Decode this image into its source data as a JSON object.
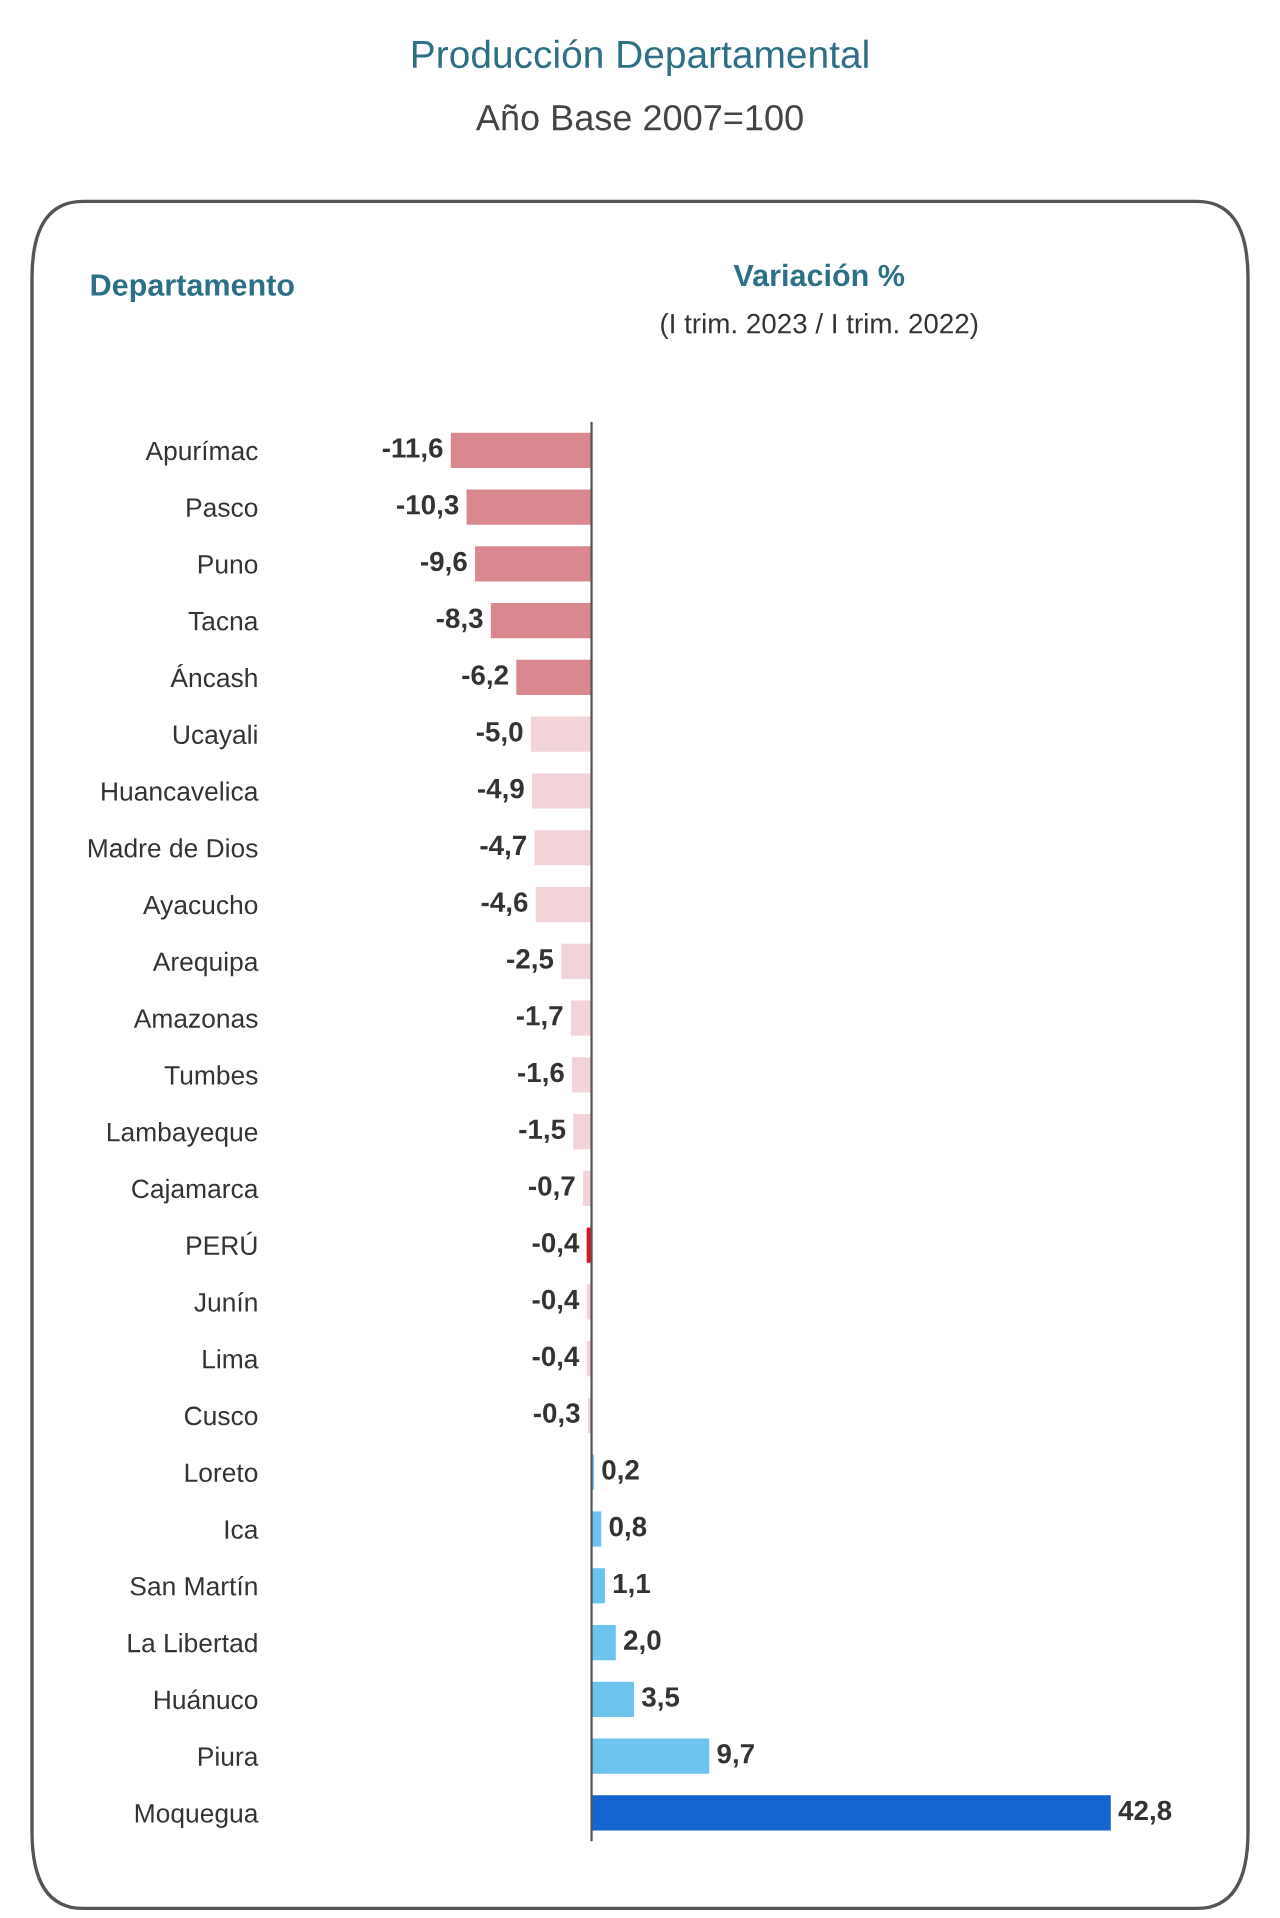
{
  "chart_data": {
    "type": "bar",
    "orientation": "horizontal",
    "title": "Producción Departamental",
    "subtitle": "Año Base 2007=100",
    "ylabel": "Departamento",
    "xlabel": "Variación %",
    "annotations": [
      "(I trim. 2023 / I trim. 2022)"
    ],
    "categories": [
      "Apurímac",
      "Pasco",
      "Puno",
      "Tacna",
      "Áncash",
      "Ucayali",
      "Huancavelica",
      "Madre de Dios",
      "Ayacucho",
      "Arequipa",
      "Amazonas",
      "Tumbes",
      "Lambayeque",
      "Cajamarca",
      "PERÚ",
      "Junín",
      "Lima",
      "Cusco",
      "Loreto",
      "Ica",
      "San Martín",
      "La Libertad",
      "Huánuco",
      "Piura",
      "Moquegua"
    ],
    "values": [
      -11.6,
      -10.3,
      -9.6,
      -8.3,
      -6.2,
      -5.0,
      -4.9,
      -4.7,
      -4.6,
      -2.5,
      -1.7,
      -1.6,
      -1.5,
      -0.7,
      -0.4,
      -0.4,
      -0.4,
      -0.3,
      0.2,
      0.8,
      1.1,
      2.0,
      3.5,
      9.7,
      42.8
    ],
    "value_labels": [
      "-11,6",
      "-10,3",
      "-9,6",
      "-8,3",
      "-6,2",
      "-5,0",
      "-4,9",
      "-4,7",
      "-4,6",
      "-2,5",
      "-1,7",
      "-1,6",
      "-1,5",
      "-0,7",
      "-0,4",
      "-0,4",
      "-0,4",
      "-0,3",
      "0,2",
      "0,8",
      "1,1",
      "2,0",
      "3,5",
      "9,7",
      "42,8"
    ],
    "colors": [
      "#d98890",
      "#d98890",
      "#d98890",
      "#d98890",
      "#d98890",
      "#f2d3d8",
      "#f2d3d8",
      "#f2d3d8",
      "#f2d3d8",
      "#f2d3d8",
      "#f2d3d8",
      "#f2d3d8",
      "#f2d3d8",
      "#f2d3d8",
      "#e8101c",
      "#f2d3d8",
      "#f2d3d8",
      "#f2d3d8",
      "#6cc3ee",
      "#6cc3ee",
      "#6cc3ee",
      "#6cc3ee",
      "#6cc3ee",
      "#6cc3ee",
      "#1565d0"
    ],
    "tick_labels": "y",
    "grid": false,
    "legend": false
  }
}
